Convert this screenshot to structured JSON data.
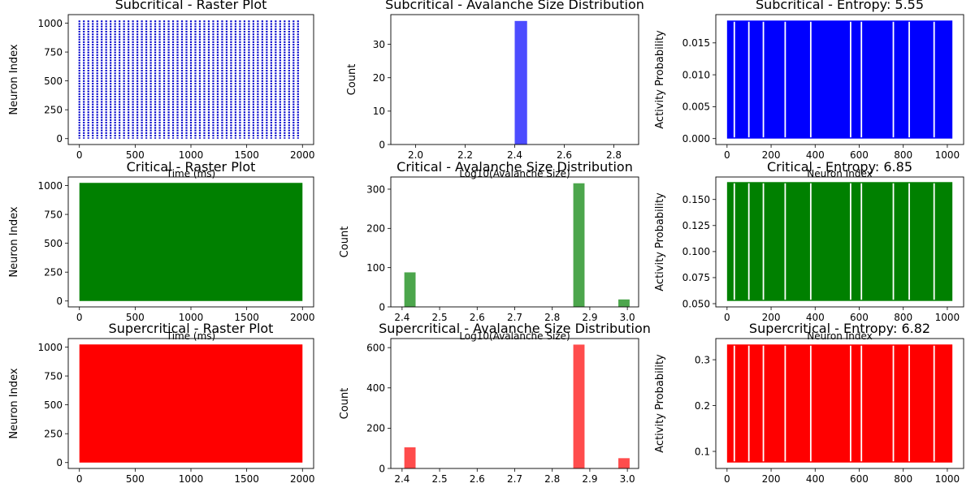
{
  "chart_data": [
    {
      "type": "raster",
      "title": "Subcritical - Raster Plot",
      "xlabel": "Time (ms)",
      "ylabel": "Neuron Index",
      "xlim": [
        -100,
        2100
      ],
      "ylim": [
        -51,
        1074
      ],
      "xticks": [
        0,
        500,
        1000,
        1500,
        2000
      ],
      "yticks": [
        0,
        250,
        500,
        750,
        1000
      ],
      "color": "#0000cc",
      "pattern": "periodic-columns",
      "column_period_ms": 40,
      "neuron_range": [
        0,
        1023
      ]
    },
    {
      "type": "bar",
      "title": "Subcritical - Avalanche Size Distribution",
      "xlabel": "Log10(Avalanche Size)",
      "ylabel": "Count",
      "xlim": [
        1.9,
        2.9
      ],
      "ylim": [
        0,
        38.9
      ],
      "xticks": [
        2.0,
        2.2,
        2.4,
        2.6,
        2.8
      ],
      "xtick_labels": [
        "2.0",
        "2.2",
        "2.4",
        "2.6",
        "2.8"
      ],
      "yticks": [
        0,
        10,
        20,
        30
      ],
      "color": "#0000ff",
      "bars": [
        {
          "x0": 2.4,
          "x1": 2.45,
          "value": 37
        }
      ]
    },
    {
      "type": "line",
      "title": "Subcritical - Entropy: 5.55",
      "xlabel": "Neuron Index",
      "ylabel": "Activity Probability",
      "xlim": [
        -51,
        1074
      ],
      "ylim": [
        -0.00093,
        0.01943
      ],
      "xticks": [
        0,
        200,
        400,
        600,
        800,
        1000
      ],
      "yticks": [
        0.0,
        0.005,
        0.01,
        0.015
      ],
      "ytick_labels": [
        "0.000",
        "0.005",
        "0.010",
        "0.015"
      ],
      "color": "#0000ff",
      "high": 0.0185,
      "low": 0.0,
      "gaps": [
        33,
        99,
        165,
        264,
        380,
        561,
        610,
        755,
        827,
        940
      ]
    },
    {
      "type": "raster",
      "title": "Critical - Raster Plot",
      "xlabel": "Time (ms)",
      "ylabel": "Neuron Index",
      "xlim": [
        -100,
        2100
      ],
      "ylim": [
        -51,
        1074
      ],
      "xticks": [
        0,
        500,
        1000,
        1500,
        2000
      ],
      "yticks": [
        0,
        250,
        500,
        750,
        1000
      ],
      "color": "#008000",
      "pattern": "dense",
      "neuron_range": [
        0,
        1023
      ]
    },
    {
      "type": "bar",
      "title": "Critical - Avalanche Size Distribution",
      "xlabel": "Log10(Avalanche Size)",
      "ylabel": "Count",
      "xlim": [
        2.37,
        3.03
      ],
      "ylim": [
        0,
        331
      ],
      "xticks": [
        2.4,
        2.5,
        2.6,
        2.7,
        2.8,
        2.9,
        3.0
      ],
      "xtick_labels": [
        "2.4",
        "2.5",
        "2.6",
        "2.7",
        "2.8",
        "2.9",
        "3.0"
      ],
      "yticks": [
        0,
        100,
        200,
        300
      ],
      "color": "#008000",
      "bars": [
        {
          "x0": 2.406,
          "x1": 2.436,
          "value": 88
        },
        {
          "x0": 2.856,
          "x1": 2.886,
          "value": 315
        },
        {
          "x0": 2.976,
          "x1": 3.006,
          "value": 19
        }
      ]
    },
    {
      "type": "line",
      "title": "Critical - Entropy: 6.85",
      "xlabel": "Neuron Index",
      "ylabel": "Activity Probability",
      "xlim": [
        -51,
        1074
      ],
      "ylim": [
        0.0469,
        0.1716
      ],
      "xticks": [
        0,
        200,
        400,
        600,
        800,
        1000
      ],
      "yticks": [
        0.05,
        0.075,
        0.1,
        0.125,
        0.15
      ],
      "ytick_labels": [
        "0.050",
        "0.075",
        "0.100",
        "0.125",
        "0.150"
      ],
      "color": "#008000",
      "high": 0.1667,
      "low": 0.0526,
      "gaps": [
        33,
        99,
        165,
        264,
        380,
        561,
        610,
        755,
        827,
        940
      ]
    },
    {
      "type": "raster",
      "title": "Supercritical - Raster Plot",
      "xlabel": "",
      "ylabel": "Neuron Index",
      "xlim": [
        -100,
        2100
      ],
      "ylim": [
        -51,
        1074
      ],
      "xticks": [
        0,
        500,
        1000,
        1500,
        2000
      ],
      "yticks": [
        0,
        250,
        500,
        750,
        1000
      ],
      "color": "#ff0000",
      "pattern": "dense",
      "neuron_range": [
        0,
        1023
      ]
    },
    {
      "type": "bar",
      "title": "Supercritical - Avalanche Size Distribution",
      "xlabel": "",
      "ylabel": "Count",
      "xlim": [
        2.37,
        3.03
      ],
      "ylim": [
        0,
        645
      ],
      "xticks": [
        2.4,
        2.5,
        2.6,
        2.7,
        2.8,
        2.9,
        3.0
      ],
      "xtick_labels": [
        "2.4",
        "2.5",
        "2.6",
        "2.7",
        "2.8",
        "2.9",
        "3.0"
      ],
      "yticks": [
        0,
        200,
        400,
        600
      ],
      "color": "#ff0000",
      "bars": [
        {
          "x0": 2.406,
          "x1": 2.436,
          "value": 105
        },
        {
          "x0": 2.856,
          "x1": 2.886,
          "value": 615
        },
        {
          "x0": 2.976,
          "x1": 3.006,
          "value": 51
        }
      ]
    },
    {
      "type": "line",
      "title": "Supercritical - Entropy: 6.82",
      "xlabel": "",
      "ylabel": "Activity Probability",
      "xlim": [
        -51,
        1074
      ],
      "ylim": [
        0.0628,
        0.3462
      ],
      "xticks": [
        0,
        200,
        400,
        600,
        800,
        1000
      ],
      "yticks": [
        0.1,
        0.2,
        0.3
      ],
      "ytick_labels": [
        "0.1",
        "0.2",
        "0.3"
      ],
      "color": "#ff0000",
      "high": 0.3333,
      "low": 0.0757,
      "gaps": [
        33,
        99,
        165,
        264,
        380,
        561,
        610,
        755,
        827,
        940
      ]
    }
  ]
}
